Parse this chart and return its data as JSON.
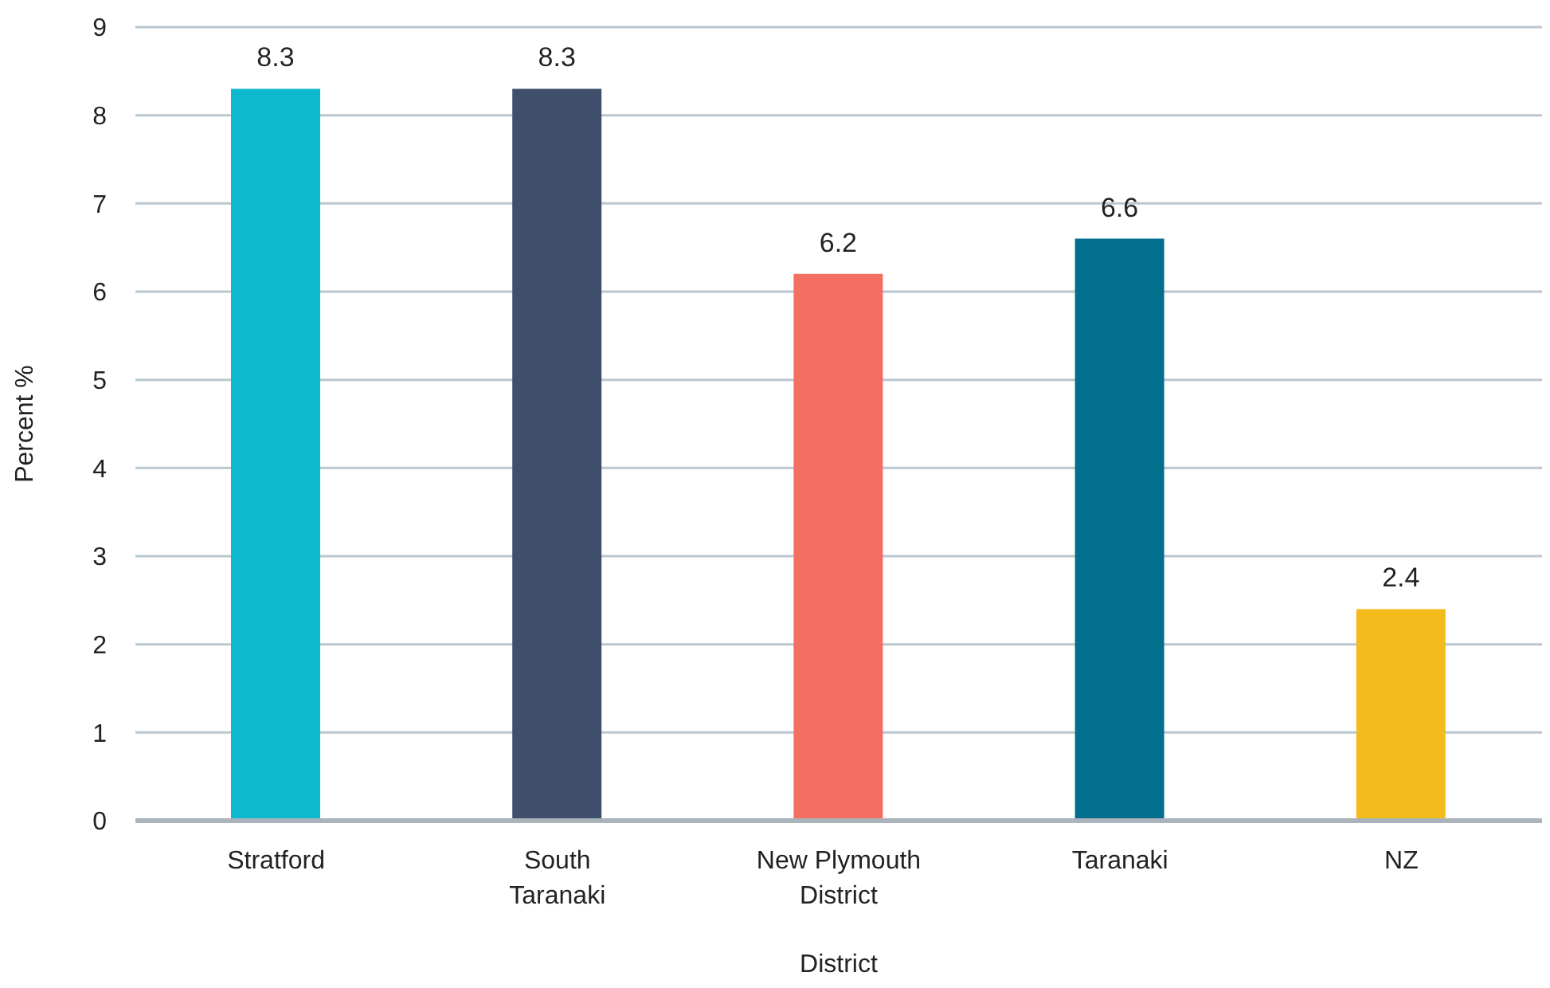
{
  "chart_data": {
    "type": "bar",
    "xlabel": "District",
    "ylabel": "Percent %",
    "categories": [
      "Stratford",
      "South Taranaki",
      "New Plymouth District",
      "Taranaki",
      "NZ"
    ],
    "values": [
      8.3,
      8.3,
      6.2,
      6.6,
      2.4
    ],
    "colors": [
      "#0db9cf",
      "#404f6b",
      "#f26f61",
      "#026f8e",
      "#f3bb1b"
    ],
    "ylim": [
      0,
      9
    ],
    "yticks": [
      0,
      1,
      2,
      3,
      4,
      5,
      6,
      7,
      8,
      9
    ],
    "grid": "y",
    "data_labels": true
  }
}
